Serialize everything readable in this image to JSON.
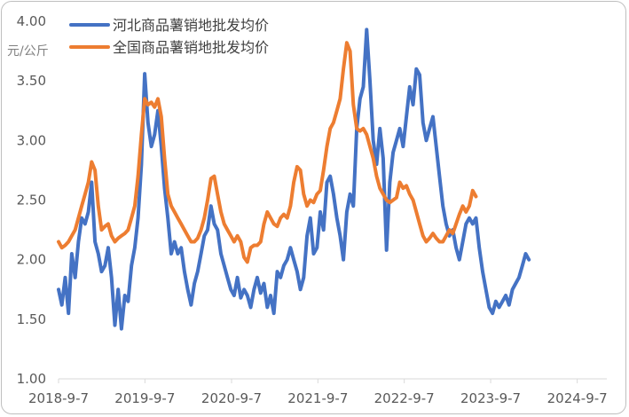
{
  "chart_data": {
    "type": "line",
    "y_unit_label": "元/公斤",
    "ylim": [
      1.0,
      4.0
    ],
    "yticks": [
      "1.00",
      "1.50",
      "2.00",
      "2.50",
      "3.00",
      "3.50",
      "4.00"
    ],
    "x_tick_labels": [
      "2018-9-7",
      "2019-9-7",
      "2020-9-7",
      "2021-9-7",
      "2022-9-7",
      "2023-9-7",
      "2024-9-7"
    ],
    "x_start": "2018-9-7",
    "x_end": "2025-1-10",
    "grid": false,
    "legend_position": "top-left",
    "series": [
      {
        "name": "河北商品薯销地批发均价",
        "color": "#4472C4",
        "points": [
          [
            "2018-09-07",
            1.75
          ],
          [
            "2018-09-21",
            1.62
          ],
          [
            "2018-10-05",
            1.85
          ],
          [
            "2018-10-19",
            1.55
          ],
          [
            "2018-11-02",
            2.05
          ],
          [
            "2018-11-16",
            1.85
          ],
          [
            "2018-11-30",
            2.15
          ],
          [
            "2018-12-14",
            2.35
          ],
          [
            "2018-12-28",
            2.3
          ],
          [
            "2019-01-11",
            2.4
          ],
          [
            "2019-01-25",
            2.65
          ],
          [
            "2019-02-08",
            2.15
          ],
          [
            "2019-02-22",
            2.05
          ],
          [
            "2019-03-08",
            1.9
          ],
          [
            "2019-03-22",
            1.95
          ],
          [
            "2019-04-05",
            2.1
          ],
          [
            "2019-04-19",
            1.85
          ],
          [
            "2019-05-03",
            1.45
          ],
          [
            "2019-05-17",
            1.75
          ],
          [
            "2019-05-31",
            1.42
          ],
          [
            "2019-06-14",
            1.7
          ],
          [
            "2019-06-28",
            1.65
          ],
          [
            "2019-07-12",
            1.95
          ],
          [
            "2019-07-26",
            2.1
          ],
          [
            "2019-08-09",
            2.35
          ],
          [
            "2019-08-23",
            2.8
          ],
          [
            "2019-09-06",
            3.56
          ],
          [
            "2019-09-20",
            3.15
          ],
          [
            "2019-10-04",
            2.95
          ],
          [
            "2019-10-18",
            3.05
          ],
          [
            "2019-11-01",
            3.25
          ],
          [
            "2019-11-15",
            2.95
          ],
          [
            "2019-11-29",
            2.6
          ],
          [
            "2019-12-13",
            2.35
          ],
          [
            "2019-12-27",
            2.05
          ],
          [
            "2020-01-10",
            2.15
          ],
          [
            "2020-01-24",
            2.05
          ],
          [
            "2020-02-07",
            2.1
          ],
          [
            "2020-02-21",
            1.9
          ],
          [
            "2020-03-06",
            1.75
          ],
          [
            "2020-03-20",
            1.62
          ],
          [
            "2020-04-03",
            1.8
          ],
          [
            "2020-04-17",
            1.9
          ],
          [
            "2020-05-01",
            2.05
          ],
          [
            "2020-05-15",
            2.2
          ],
          [
            "2020-05-29",
            2.25
          ],
          [
            "2020-06-12",
            2.45
          ],
          [
            "2020-06-26",
            2.3
          ],
          [
            "2020-07-10",
            2.25
          ],
          [
            "2020-07-24",
            2.05
          ],
          [
            "2020-08-07",
            1.95
          ],
          [
            "2020-08-21",
            1.85
          ],
          [
            "2020-09-04",
            1.75
          ],
          [
            "2020-09-18",
            1.7
          ],
          [
            "2020-10-02",
            1.85
          ],
          [
            "2020-10-16",
            1.68
          ],
          [
            "2020-10-30",
            1.75
          ],
          [
            "2020-11-13",
            1.7
          ],
          [
            "2020-11-27",
            1.6
          ],
          [
            "2020-12-11",
            1.75
          ],
          [
            "2020-12-25",
            1.85
          ],
          [
            "2021-01-08",
            1.72
          ],
          [
            "2021-01-22",
            1.8
          ],
          [
            "2021-02-05",
            1.6
          ],
          [
            "2021-02-19",
            1.7
          ],
          [
            "2021-03-05",
            1.55
          ],
          [
            "2021-03-19",
            1.9
          ],
          [
            "2021-04-02",
            1.85
          ],
          [
            "2021-04-16",
            1.95
          ],
          [
            "2021-04-30",
            2.0
          ],
          [
            "2021-05-14",
            2.1
          ],
          [
            "2021-05-28",
            2.0
          ],
          [
            "2021-06-11",
            1.9
          ],
          [
            "2021-06-25",
            1.75
          ],
          [
            "2021-07-09",
            1.85
          ],
          [
            "2021-07-23",
            2.2
          ],
          [
            "2021-08-06",
            2.35
          ],
          [
            "2021-08-20",
            2.05
          ],
          [
            "2021-09-03",
            2.1
          ],
          [
            "2021-09-17",
            2.4
          ],
          [
            "2021-10-01",
            2.25
          ],
          [
            "2021-10-15",
            2.65
          ],
          [
            "2021-10-29",
            2.7
          ],
          [
            "2021-11-12",
            2.55
          ],
          [
            "2021-11-26",
            2.35
          ],
          [
            "2021-12-10",
            2.2
          ],
          [
            "2021-12-24",
            2.0
          ],
          [
            "2022-01-07",
            2.4
          ],
          [
            "2022-01-21",
            2.55
          ],
          [
            "2022-02-04",
            2.45
          ],
          [
            "2022-02-18",
            3.1
          ],
          [
            "2022-03-04",
            3.35
          ],
          [
            "2022-03-18",
            3.45
          ],
          [
            "2022-04-01",
            3.93
          ],
          [
            "2022-04-15",
            3.5
          ],
          [
            "2022-04-29",
            3.0
          ],
          [
            "2022-05-13",
            2.8
          ],
          [
            "2022-05-27",
            3.1
          ],
          [
            "2022-06-10",
            2.85
          ],
          [
            "2022-06-24",
            2.08
          ],
          [
            "2022-07-08",
            2.65
          ],
          [
            "2022-07-22",
            2.9
          ],
          [
            "2022-08-05",
            3.0
          ],
          [
            "2022-08-19",
            3.1
          ],
          [
            "2022-09-02",
            2.95
          ],
          [
            "2022-09-16",
            3.2
          ],
          [
            "2022-09-30",
            3.45
          ],
          [
            "2022-10-14",
            3.3
          ],
          [
            "2022-10-28",
            3.6
          ],
          [
            "2022-11-11",
            3.55
          ],
          [
            "2022-11-25",
            3.15
          ],
          [
            "2022-12-09",
            3.0
          ],
          [
            "2022-12-23",
            3.1
          ],
          [
            "2023-01-06",
            3.2
          ],
          [
            "2023-01-20",
            2.95
          ],
          [
            "2023-02-03",
            2.7
          ],
          [
            "2023-02-17",
            2.45
          ],
          [
            "2023-03-03",
            2.3
          ],
          [
            "2023-03-17",
            2.2
          ],
          [
            "2023-03-31",
            2.25
          ],
          [
            "2023-04-14",
            2.1
          ],
          [
            "2023-04-28",
            2.0
          ],
          [
            "2023-05-12",
            2.15
          ],
          [
            "2023-05-26",
            2.3
          ],
          [
            "2023-06-09",
            2.35
          ],
          [
            "2023-06-23",
            2.3
          ],
          [
            "2023-07-07",
            2.35
          ],
          [
            "2023-07-21",
            2.1
          ],
          [
            "2023-08-04",
            1.9
          ],
          [
            "2023-08-18",
            1.75
          ],
          [
            "2023-09-01",
            1.6
          ],
          [
            "2023-09-15",
            1.55
          ],
          [
            "2023-09-29",
            1.65
          ],
          [
            "2023-10-13",
            1.6
          ],
          [
            "2023-10-27",
            1.65
          ],
          [
            "2023-11-10",
            1.7
          ],
          [
            "2023-11-24",
            1.62
          ],
          [
            "2023-12-08",
            1.75
          ],
          [
            "2023-12-22",
            1.8
          ],
          [
            "2024-01-05",
            1.85
          ],
          [
            "2024-01-19",
            1.95
          ],
          [
            "2024-02-02",
            2.05
          ],
          [
            "2024-02-16",
            2.0
          ]
        ]
      },
      {
        "name": "全国商品薯销地批发均价",
        "color": "#ED7D31",
        "points": [
          [
            "2018-09-07",
            2.15
          ],
          [
            "2018-09-21",
            2.1
          ],
          [
            "2018-10-05",
            2.12
          ],
          [
            "2018-10-19",
            2.15
          ],
          [
            "2018-11-02",
            2.2
          ],
          [
            "2018-11-16",
            2.25
          ],
          [
            "2018-11-30",
            2.35
          ],
          [
            "2018-12-14",
            2.45
          ],
          [
            "2018-12-28",
            2.55
          ],
          [
            "2019-01-11",
            2.65
          ],
          [
            "2019-01-25",
            2.82
          ],
          [
            "2019-02-08",
            2.75
          ],
          [
            "2019-02-22",
            2.45
          ],
          [
            "2019-03-08",
            2.25
          ],
          [
            "2019-03-22",
            2.28
          ],
          [
            "2019-04-05",
            2.3
          ],
          [
            "2019-04-19",
            2.2
          ],
          [
            "2019-05-03",
            2.15
          ],
          [
            "2019-05-17",
            2.18
          ],
          [
            "2019-05-31",
            2.2
          ],
          [
            "2019-06-14",
            2.22
          ],
          [
            "2019-06-28",
            2.25
          ],
          [
            "2019-07-12",
            2.35
          ],
          [
            "2019-07-26",
            2.45
          ],
          [
            "2019-08-09",
            2.7
          ],
          [
            "2019-08-23",
            3.05
          ],
          [
            "2019-09-06",
            3.35
          ],
          [
            "2019-09-20",
            3.3
          ],
          [
            "2019-10-04",
            3.32
          ],
          [
            "2019-10-18",
            3.28
          ],
          [
            "2019-11-01",
            3.35
          ],
          [
            "2019-11-15",
            3.2
          ],
          [
            "2019-11-29",
            2.85
          ],
          [
            "2019-12-13",
            2.55
          ],
          [
            "2019-12-27",
            2.45
          ],
          [
            "2020-01-10",
            2.4
          ],
          [
            "2020-01-24",
            2.35
          ],
          [
            "2020-02-07",
            2.3
          ],
          [
            "2020-02-21",
            2.25
          ],
          [
            "2020-03-06",
            2.2
          ],
          [
            "2020-03-20",
            2.15
          ],
          [
            "2020-04-03",
            2.15
          ],
          [
            "2020-04-17",
            2.18
          ],
          [
            "2020-05-01",
            2.25
          ],
          [
            "2020-05-15",
            2.35
          ],
          [
            "2020-05-29",
            2.5
          ],
          [
            "2020-06-12",
            2.68
          ],
          [
            "2020-06-26",
            2.7
          ],
          [
            "2020-07-10",
            2.55
          ],
          [
            "2020-07-24",
            2.4
          ],
          [
            "2020-08-07",
            2.3
          ],
          [
            "2020-08-21",
            2.25
          ],
          [
            "2020-09-04",
            2.2
          ],
          [
            "2020-09-18",
            2.15
          ],
          [
            "2020-10-02",
            2.2
          ],
          [
            "2020-10-16",
            2.15
          ],
          [
            "2020-10-30",
            2.02
          ],
          [
            "2020-11-13",
            1.98
          ],
          [
            "2020-11-27",
            2.1
          ],
          [
            "2020-12-11",
            2.12
          ],
          [
            "2020-12-25",
            2.12
          ],
          [
            "2021-01-08",
            2.15
          ],
          [
            "2021-01-22",
            2.3
          ],
          [
            "2021-02-05",
            2.4
          ],
          [
            "2021-02-19",
            2.35
          ],
          [
            "2021-03-05",
            2.3
          ],
          [
            "2021-03-19",
            2.28
          ],
          [
            "2021-04-02",
            2.35
          ],
          [
            "2021-04-16",
            2.38
          ],
          [
            "2021-04-30",
            2.35
          ],
          [
            "2021-05-14",
            2.45
          ],
          [
            "2021-05-28",
            2.65
          ],
          [
            "2021-06-11",
            2.78
          ],
          [
            "2021-06-25",
            2.75
          ],
          [
            "2021-07-09",
            2.55
          ],
          [
            "2021-07-23",
            2.45
          ],
          [
            "2021-08-06",
            2.5
          ],
          [
            "2021-08-20",
            2.48
          ],
          [
            "2021-09-03",
            2.55
          ],
          [
            "2021-09-17",
            2.58
          ],
          [
            "2021-10-01",
            2.75
          ],
          [
            "2021-10-15",
            2.95
          ],
          [
            "2021-10-29",
            3.1
          ],
          [
            "2021-11-12",
            3.15
          ],
          [
            "2021-11-26",
            3.25
          ],
          [
            "2021-12-10",
            3.35
          ],
          [
            "2021-12-24",
            3.6
          ],
          [
            "2022-01-07",
            3.82
          ],
          [
            "2022-01-21",
            3.75
          ],
          [
            "2022-02-04",
            3.3
          ],
          [
            "2022-02-18",
            3.1
          ],
          [
            "2022-03-04",
            3.08
          ],
          [
            "2022-03-18",
            3.1
          ],
          [
            "2022-04-01",
            3.05
          ],
          [
            "2022-04-15",
            2.95
          ],
          [
            "2022-04-29",
            2.85
          ],
          [
            "2022-05-13",
            2.7
          ],
          [
            "2022-05-27",
            2.6
          ],
          [
            "2022-06-10",
            2.55
          ],
          [
            "2022-06-24",
            2.5
          ],
          [
            "2022-07-08",
            2.48
          ],
          [
            "2022-07-22",
            2.5
          ],
          [
            "2022-08-05",
            2.52
          ],
          [
            "2022-08-19",
            2.65
          ],
          [
            "2022-09-02",
            2.6
          ],
          [
            "2022-09-16",
            2.62
          ],
          [
            "2022-09-30",
            2.55
          ],
          [
            "2022-10-14",
            2.5
          ],
          [
            "2022-10-28",
            2.4
          ],
          [
            "2022-11-11",
            2.3
          ],
          [
            "2022-11-25",
            2.2
          ],
          [
            "2022-12-09",
            2.15
          ],
          [
            "2022-12-23",
            2.18
          ],
          [
            "2023-01-06",
            2.22
          ],
          [
            "2023-01-20",
            2.18
          ],
          [
            "2023-02-03",
            2.15
          ],
          [
            "2023-02-17",
            2.15
          ],
          [
            "2023-03-03",
            2.2
          ],
          [
            "2023-03-17",
            2.25
          ],
          [
            "2023-03-31",
            2.22
          ],
          [
            "2023-04-14",
            2.3
          ],
          [
            "2023-04-28",
            2.38
          ],
          [
            "2023-05-12",
            2.45
          ],
          [
            "2023-05-26",
            2.4
          ],
          [
            "2023-06-09",
            2.45
          ],
          [
            "2023-06-23",
            2.58
          ],
          [
            "2023-07-07",
            2.53
          ]
        ]
      }
    ]
  }
}
